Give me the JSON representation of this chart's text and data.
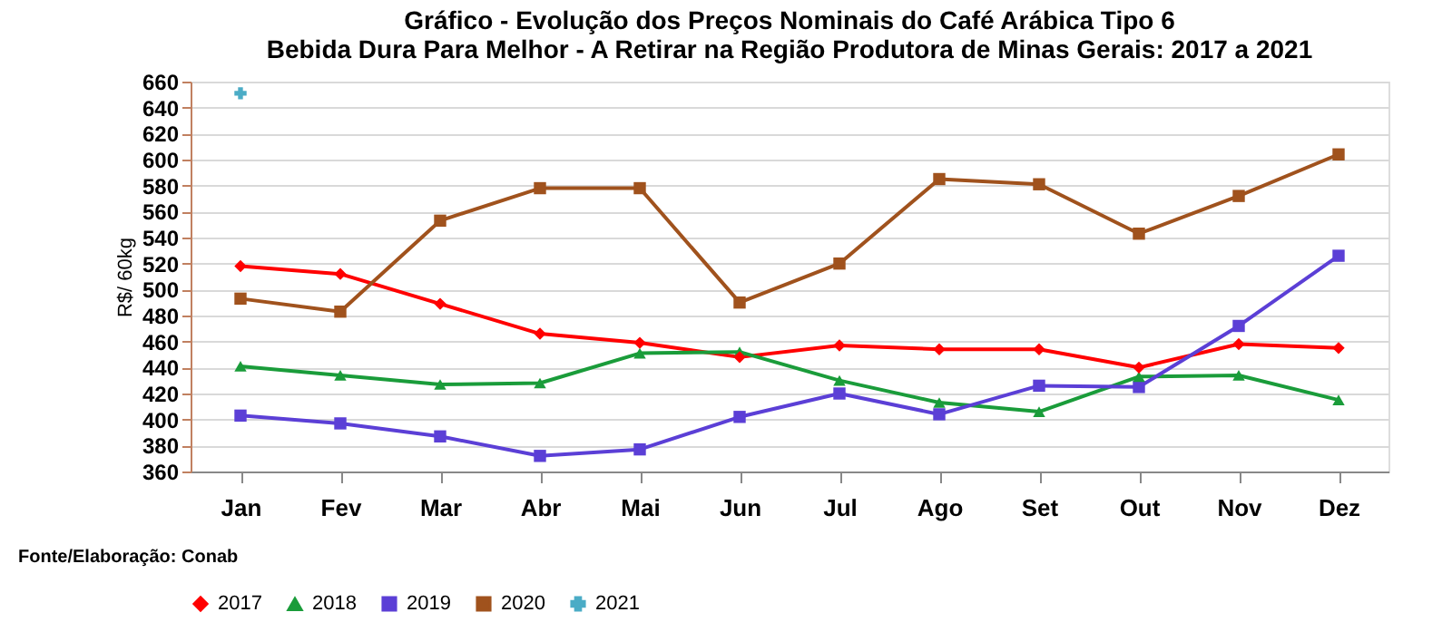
{
  "chart_data": {
    "type": "line",
    "title": "Gráfico  - Evolução dos Preços Nominais do Café Arábica Tipo 6\nBebida Dura Para Melhor - A Retirar na Região Produtora de Minas Gerais:  2017 a 2021",
    "ylabel": "R$/ 60kg",
    "categories": [
      "Jan",
      "Fev",
      "Mar",
      "Abr",
      "Mai",
      "Jun",
      "Jul",
      "Ago",
      "Set",
      "Out",
      "Nov",
      "Dez"
    ],
    "series": [
      {
        "name": "2017",
        "color": "#ff0000",
        "marker": "diamond",
        "values": [
          518,
          512,
          489,
          466,
          459,
          448,
          457,
          454,
          454,
          440,
          458,
          455
        ]
      },
      {
        "name": "2018",
        "color": "#1a9c3a",
        "marker": "triangle",
        "values": [
          441,
          434,
          427,
          428,
          451,
          452,
          430,
          413,
          406,
          433,
          434,
          415
        ]
      },
      {
        "name": "2019",
        "color": "#5b3fd6",
        "marker": "square",
        "values": [
          403,
          397,
          387,
          372,
          377,
          402,
          420,
          404,
          426,
          425,
          472,
          526
        ]
      },
      {
        "name": "2020",
        "color": "#a0521d",
        "marker": "square",
        "values": [
          493,
          483,
          553,
          578,
          578,
          490,
          520,
          585,
          581,
          543,
          572,
          604
        ]
      },
      {
        "name": "2021",
        "color": "#4bacc6",
        "marker": "cross",
        "values": [
          651,
          null,
          null,
          null,
          null,
          null,
          null,
          null,
          null,
          null,
          null,
          null
        ]
      }
    ],
    "ylim": [
      360,
      660
    ],
    "yticks": [
      360,
      380,
      400,
      420,
      440,
      460,
      480,
      500,
      520,
      540,
      560,
      580,
      600,
      620,
      640,
      660
    ],
    "grid": "y",
    "legend": "bottom",
    "line_style": "solid",
    "annotations": [
      "Fonte/Elaboração: Conab"
    ]
  }
}
